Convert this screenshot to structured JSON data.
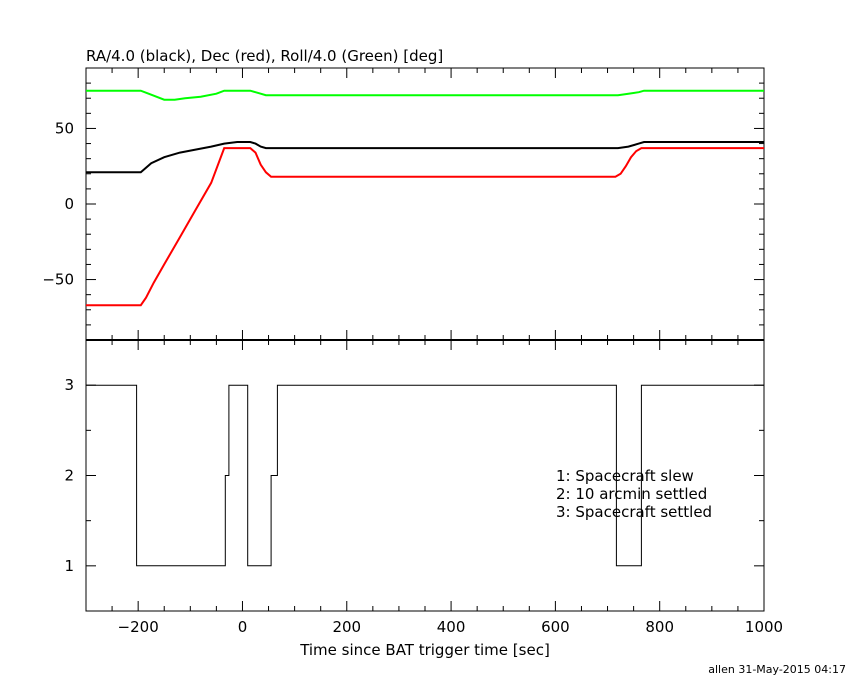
{
  "chart_data": [
    {
      "type": "line",
      "title": "RA/4.0 (black), Dec (red), Roll/4.0 (Green) [deg]",
      "xlim": [
        -300,
        1000
      ],
      "ylim": [
        -90,
        90
      ],
      "x_ticks": [
        -200,
        0,
        200,
        400,
        600,
        800,
        1000
      ],
      "y_ticks": [
        -50,
        0,
        50
      ],
      "y_tick_labels": [
        "−50",
        "0",
        "50"
      ],
      "series": [
        {
          "color": "#000000",
          "x": [
            -300,
            -195,
            -175,
            -150,
            -120,
            -90,
            -60,
            -35,
            -10,
            15,
            25,
            35,
            45,
            50,
            60,
            80,
            150,
            200,
            250,
            300,
            340,
            400,
            500,
            600,
            700,
            720,
            740,
            760,
            770,
            800,
            900,
            1000
          ],
          "y": [
            21,
            21,
            27,
            31,
            34,
            36,
            38,
            40,
            41,
            41,
            40,
            38,
            37,
            37,
            37,
            37,
            37,
            37,
            37,
            37,
            37,
            37,
            37,
            37,
            37,
            37,
            38,
            40,
            41,
            41,
            41,
            41
          ]
        },
        {
          "color": "#ff0000",
          "x": [
            -300,
            -195,
            -185,
            -170,
            -150,
            -120,
            -90,
            -60,
            -35,
            15,
            25,
            35,
            45,
            55,
            70,
            150,
            340,
            500,
            700,
            715,
            725,
            735,
            745,
            755,
            765,
            770,
            800,
            1000
          ],
          "y": [
            -67,
            -67,
            -62,
            -52,
            -40,
            -22,
            -4,
            14,
            37,
            37,
            34,
            26,
            21,
            18,
            18,
            18,
            18,
            18,
            18,
            18,
            20,
            25,
            31,
            35,
            37,
            37,
            37,
            37
          ]
        },
        {
          "color": "#00ff00",
          "x": [
            -300,
            -195,
            -180,
            -165,
            -150,
            -130,
            -110,
            -80,
            -50,
            -35,
            15,
            25,
            35,
            45,
            60,
            340,
            500,
            700,
            720,
            740,
            760,
            770,
            800,
            1000
          ],
          "y": [
            75,
            75,
            73,
            71,
            69,
            69,
            70,
            71,
            73,
            75,
            75,
            74,
            73,
            72,
            72,
            72,
            72,
            72,
            72,
            73,
            74,
            75,
            75,
            75
          ]
        }
      ]
    },
    {
      "type": "line",
      "xlabel": "Time since BAT trigger time [sec]",
      "xlim": [
        -300,
        1000
      ],
      "ylim": [
        0.5,
        3.5
      ],
      "x_ticks": [
        -200,
        0,
        200,
        400,
        600,
        800,
        1000
      ],
      "x_tick_labels": [
        "−200",
        "0",
        "200",
        "400",
        "600",
        "800",
        "1000"
      ],
      "y_ticks": [
        1,
        2,
        3
      ],
      "y_tick_labels": [
        "1",
        "2",
        "3"
      ],
      "series": [
        {
          "color": "#000000",
          "step": true,
          "x": [
            -300,
            -203,
            -203,
            -33,
            -33,
            -26,
            -26,
            10,
            10,
            55,
            55,
            67,
            67,
            717,
            717,
            765,
            765,
            1000
          ],
          "y": [
            3,
            3,
            1,
            1,
            2,
            2,
            3,
            3,
            1,
            1,
            2,
            2,
            3,
            3,
            1,
            1,
            3,
            3
          ]
        }
      ],
      "annotations": [
        "1: Spacecraft slew",
        "2: 10 arcmin settled",
        "3: Spacecraft settled"
      ]
    }
  ],
  "footer": {
    "credit": "allen 31-May-2015 04:17"
  }
}
